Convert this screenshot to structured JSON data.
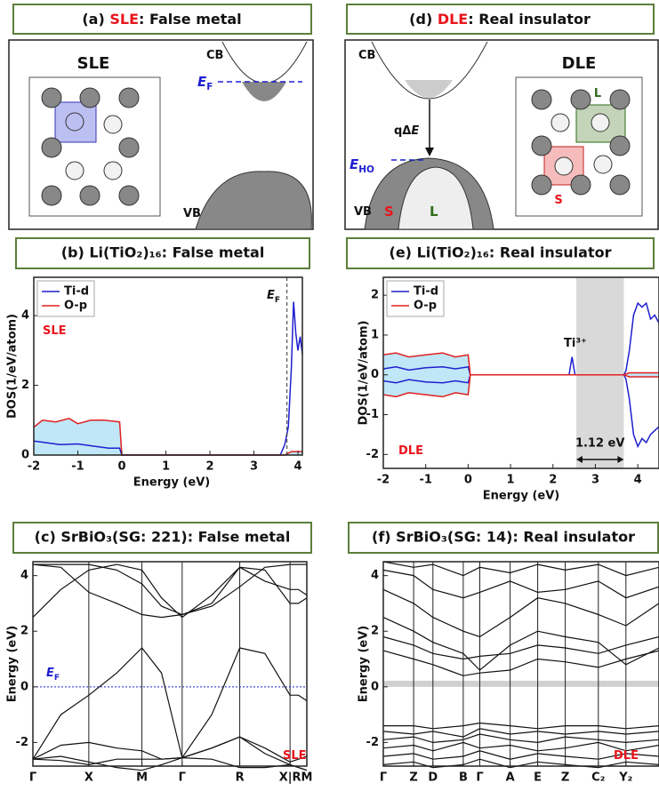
{
  "diagrams": [
    {
      "title": [
        {
          "text": "(a) "
        },
        {
          "text": "SLE",
          "color": "#e8141c"
        },
        {
          "text": ": False metal"
        }
      ],
      "lattice_label": [
        {
          "text": "SLE"
        }
      ],
      "cb": [
        {
          "text": "CB"
        }
      ],
      "vb": [
        {
          "text": "VB"
        }
      ],
      "fermi": [
        {
          "text": "E",
          "italic": true,
          "color": "#1f1fd0"
        },
        {
          "text": "F",
          "sub": true,
          "color": "#1f1fd0"
        }
      ]
    },
    {
      "title": [
        {
          "text": "(d) "
        },
        {
          "text": "DLE",
          "color": "#e8141c"
        },
        {
          "text": ": Real insulator"
        }
      ],
      "cb": [
        {
          "text": "CB"
        }
      ],
      "vb": [
        {
          "text": "VB"
        }
      ],
      "excitation": [
        {
          "text": "qΔ"
        },
        {
          "text": "E",
          "italic": true
        }
      ],
      "level": [
        {
          "text": "E",
          "italic": true,
          "color": "#1f1fd0"
        },
        {
          "text": "HO",
          "sub": true,
          "color": "#1f1fd0"
        }
      ],
      "lattice_label": [
        {
          "text": "DLE"
        }
      ],
      "large": [
        {
          "text": "L",
          "color": "#2f6b1a"
        }
      ],
      "small": [
        {
          "text": "S",
          "color": "#e8141c"
        }
      ]
    }
  ],
  "chart_data": [
    {
      "type": "area",
      "title": "(b) Li(TiO₂)₁₆: False metal",
      "xlabel": "Energy (eV)",
      "ylabel": "DOS(1/eV/atom)",
      "xlim": [
        -2,
        4.1
      ],
      "xticks": [
        -2,
        -1,
        0,
        1,
        2,
        3,
        4
      ],
      "ylim": [
        0,
        5.1
      ],
      "yticks": [
        0,
        2,
        4
      ],
      "legend": "upper left",
      "fermi_level": 3.75,
      "series": [
        {
          "name": "Ti-d",
          "color": "#1f1fd0",
          "x": [
            -2,
            -1.7,
            -1.4,
            -1,
            -0.6,
            -0.3,
            -0.05,
            0,
            3.6,
            3.7,
            3.78,
            3.85,
            3.9,
            3.95,
            4.0,
            4.05,
            4.1
          ],
          "values": [
            0.4,
            0.35,
            0.3,
            0.32,
            0.25,
            0.2,
            0.2,
            0,
            0,
            0.3,
            0.8,
            2.5,
            4.4,
            3.5,
            3.0,
            3.4,
            2.9
          ]
        },
        {
          "name": "O-p",
          "color": "#e02020",
          "fill": "#bfe7f7",
          "x": [
            -2,
            -1.8,
            -1.5,
            -1.2,
            -1,
            -0.7,
            -0.4,
            -0.05,
            0,
            3.7,
            3.85,
            4.1
          ],
          "values": [
            0.8,
            1.0,
            0.95,
            1.05,
            0.9,
            1.0,
            1.0,
            0.95,
            0,
            0,
            0.1,
            0.1
          ]
        }
      ],
      "annotations": [
        [
          {
            "text": "SLE",
            "color": "#e8141c"
          }
        ],
        [
          {
            "text": "E",
            "italic": true
          },
          {
            "text": "F",
            "sub": true
          }
        ]
      ]
    },
    {
      "type": "area",
      "title": "(e) Li(TiO₂)₁₆: Real insulator",
      "xlabel": "Energy (eV)",
      "ylabel": "DOS(1/eV/atom)",
      "xlim": [
        -2,
        4.5
      ],
      "xticks": [
        -2,
        -1,
        0,
        1,
        2,
        3,
        4
      ],
      "ylim": [
        -2.35,
        2.45
      ],
      "yticks": [
        -2,
        -1,
        0,
        1,
        2
      ],
      "legend": "upper left",
      "gap": [
        2.55,
        3.67
      ],
      "gap_size": {
        "value": 1.12,
        "label": "1.12 eV"
      },
      "series": [
        {
          "name": "Ti-d",
          "color": "#1f1fd0",
          "x": [
            -2,
            -1.7,
            -1.4,
            -1,
            -0.6,
            -0.3,
            0,
            0.05,
            2.38,
            2.45,
            2.52,
            3.67,
            3.72,
            3.8,
            3.9,
            4.0,
            4.1,
            4.2,
            4.3,
            4.4,
            4.5
          ],
          "values": [
            0.15,
            0.2,
            0.12,
            0.18,
            0.2,
            0.15,
            0.2,
            0,
            0,
            0.45,
            0,
            0,
            0.1,
            0.6,
            1.5,
            1.8,
            1.7,
            1.8,
            1.4,
            1.5,
            1.3
          ],
          "values_down": [
            -0.15,
            -0.2,
            -0.12,
            -0.18,
            -0.2,
            -0.15,
            -0.2,
            0,
            0,
            0,
            0,
            0,
            -0.1,
            -0.6,
            -1.5,
            -1.8,
            -1.6,
            -1.7,
            -1.5,
            -1.4,
            -1.3
          ]
        },
        {
          "name": "O-p",
          "color": "#e02020",
          "fill": "#bfe7f7",
          "x": [
            -2,
            -1.7,
            -1.4,
            -1,
            -0.6,
            -0.3,
            0,
            0.05,
            3.67,
            3.8,
            4.5
          ],
          "values": [
            0.5,
            0.55,
            0.45,
            0.5,
            0.55,
            0.45,
            0.5,
            0,
            0,
            0.05,
            0.05
          ],
          "values_down": [
            -0.5,
            -0.55,
            -0.45,
            -0.5,
            -0.55,
            -0.45,
            -0.5,
            0,
            0,
            -0.05,
            -0.05
          ]
        }
      ],
      "annotations": [
        [
          {
            "text": "Ti³⁺"
          }
        ],
        [
          {
            "text": "DLE",
            "color": "#e8141c"
          }
        ]
      ]
    },
    {
      "type": "line",
      "title": "(c) SrBiO₃(SG: 221): False metal",
      "ylabel": "Energy (eV)",
      "xlim": [
        0,
        4.9
      ],
      "ylim": [
        -2.85,
        4.5
      ],
      "yticks": [
        -2,
        0,
        2,
        4
      ],
      "grid": true,
      "fermi_level": 0,
      "color": "#111111",
      "xticks": [
        {
          "value": 0,
          "label": "Γ"
        },
        {
          "value": 1,
          "label": "X"
        },
        {
          "value": 1.95,
          "label": "M"
        },
        {
          "value": 2.67,
          "label": "Γ"
        },
        {
          "value": 3.7,
          "label": "R"
        },
        {
          "value": 4.6,
          "label": "X|R"
        },
        {
          "value": 4.9,
          "label": "M"
        }
      ],
      "x": [
        0,
        0.5,
        1,
        1.5,
        1.95,
        2.3,
        2.67,
        3.2,
        3.7,
        4.15,
        4.6,
        4.75,
        4.9
      ],
      "bands": [
        [
          -2.6,
          -2.65,
          -2.8,
          -2.6,
          -2.6,
          -2.6,
          -2.55,
          -2.2,
          -1.8,
          -2.2,
          -2.7,
          -2.6,
          -2.5
        ],
        [
          -2.6,
          -2.5,
          -2.7,
          -2.9,
          -3.0,
          -2.8,
          -2.55,
          -2.6,
          -2.9,
          -2.9,
          -2.8,
          -2.9,
          -3.0
        ],
        [
          -2.6,
          -2.1,
          -2.0,
          -2.2,
          -2.3,
          -2.6,
          -2.55,
          -2.2,
          -1.8,
          -2.4,
          -2.8,
          -2.9,
          -3.0
        ],
        [
          -2.6,
          -1.0,
          -0.3,
          0.5,
          1.4,
          0.5,
          -2.55,
          -1.0,
          1.4,
          1.2,
          -0.3,
          -0.3,
          -0.5
        ],
        [
          2.5,
          3.5,
          4.2,
          4.4,
          4.2,
          3.2,
          2.5,
          3.3,
          4.3,
          3.8,
          3.5,
          3.5,
          3.3
        ],
        [
          4.4,
          4.3,
          3.4,
          3.0,
          2.6,
          2.5,
          2.6,
          3.0,
          4.3,
          4.2,
          3.0,
          3.0,
          3.2
        ],
        [
          4.4,
          4.4,
          4.4,
          4.2,
          3.7,
          2.9,
          2.6,
          2.9,
          3.6,
          4.3,
          4.4,
          4.4,
          4.4
        ]
      ],
      "annotations": [
        [
          {
            "text": "E",
            "italic": true,
            "color": "#1f1fd0"
          },
          {
            "text": "F",
            "sub": true,
            "color": "#1f1fd0"
          }
        ],
        [
          {
            "text": "SLE",
            "color": "#e8141c"
          }
        ]
      ]
    },
    {
      "type": "line",
      "title": "(f) SrBiO₃(SG: 14): Real insulator",
      "ylabel": "Energy (eV)",
      "xlim": [
        0,
        10
      ],
      "ylim": [
        -2.85,
        4.5
      ],
      "yticks": [
        -2,
        0,
        2,
        4
      ],
      "grid": true,
      "gap": [
        0,
        0.22
      ],
      "color": "#111111",
      "xticks": [
        {
          "value": 0,
          "label": "Γ"
        },
        {
          "value": 1.1,
          "label": "Z"
        },
        {
          "value": 1.8,
          "label": "D"
        },
        {
          "value": 2.9,
          "label": "B"
        },
        {
          "value": 3.5,
          "label": "Γ"
        },
        {
          "value": 4.6,
          "label": "A"
        },
        {
          "value": 5.6,
          "label": "E"
        },
        {
          "value": 6.6,
          "label": "Z"
        },
        {
          "value": 7.8,
          "label": "C₂"
        },
        {
          "value": 8.8,
          "label": "Y₂"
        }
      ],
      "x": [
        0,
        1.1,
        1.8,
        2.9,
        3.5,
        4.6,
        5.6,
        6.6,
        7.8,
        8.8,
        10
      ],
      "bands": [
        [
          -1.4,
          -1.4,
          -1.5,
          -1.4,
          -1.3,
          -1.4,
          -1.5,
          -1.4,
          -1.4,
          -1.5,
          -1.4
        ],
        [
          -1.6,
          -1.7,
          -1.6,
          -1.8,
          -1.5,
          -1.7,
          -1.6,
          -1.7,
          -1.6,
          -1.7,
          -1.6
        ],
        [
          -1.9,
          -1.8,
          -2.0,
          -1.9,
          -1.7,
          -1.9,
          -2.0,
          -1.8,
          -1.9,
          -2.0,
          -1.9
        ],
        [
          -2.2,
          -2.1,
          -2.3,
          -2.0,
          -2.2,
          -2.1,
          -2.3,
          -2.2,
          -2.0,
          -2.3,
          -2.1
        ],
        [
          -2.5,
          -2.4,
          -2.6,
          -2.5,
          -2.3,
          -2.6,
          -2.4,
          -2.5,
          -2.6,
          -2.4,
          -2.5
        ],
        [
          -2.8,
          -2.7,
          -2.9,
          -2.8,
          -2.6,
          -2.9,
          -2.7,
          -2.8,
          -2.9,
          -2.7,
          -2.8
        ],
        [
          1.3,
          1.0,
          0.8,
          0.4,
          0.5,
          0.6,
          1.0,
          0.9,
          0.7,
          1.0,
          1.3
        ],
        [
          1.8,
          1.5,
          1.2,
          1.0,
          1.1,
          1.2,
          1.5,
          1.4,
          1.2,
          1.5,
          1.8
        ],
        [
          2.5,
          2.0,
          1.6,
          1.2,
          0.6,
          1.5,
          2.0,
          1.8,
          1.6,
          0.8,
          1.4
        ],
        [
          3.5,
          3.0,
          2.5,
          2.0,
          1.8,
          2.5,
          3.2,
          3.0,
          2.6,
          2.2,
          3.0
        ],
        [
          4.2,
          4.0,
          3.5,
          3.2,
          3.4,
          3.8,
          3.4,
          3.5,
          3.8,
          3.2,
          3.6
        ],
        [
          4.5,
          4.3,
          4.4,
          4.0,
          4.3,
          4.1,
          4.4,
          4.2,
          4.4,
          4.0,
          4.3
        ]
      ],
      "annotations": [
        [
          {
            "text": "DLE",
            "color": "#e8141c"
          }
        ]
      ]
    }
  ]
}
